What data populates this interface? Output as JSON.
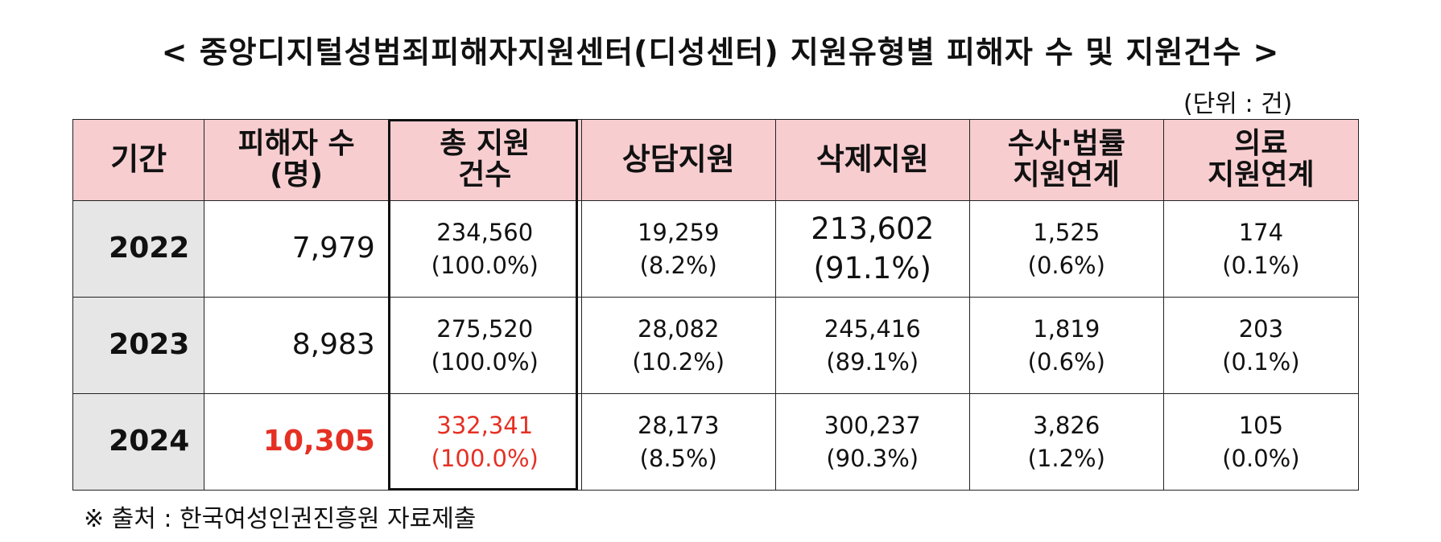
{
  "title": "< 중앙디지털성범죄피해자지원센터(디성센터) 지원유형별 피해자 수 및 지원건수 >",
  "unit": "(단위 : 건)",
  "table": {
    "headers": [
      {
        "line1": "기간",
        "line2": ""
      },
      {
        "line1": "피해자 수",
        "line2": "(명)"
      },
      {
        "line1": "총 지원",
        "line2": "건수"
      },
      {
        "line1": "상담지원",
        "line2": ""
      },
      {
        "line1": "삭제지원",
        "line2": ""
      },
      {
        "line1": "수사·법률",
        "line2": "지원연계"
      },
      {
        "line1": "의료",
        "line2": "지원연계"
      }
    ],
    "rows": [
      {
        "year": "2022",
        "victims": "7,979",
        "total": {
          "value": "234,560",
          "pct": "(100.0%)"
        },
        "counseling": {
          "value": "19,259",
          "pct": "(8.2%)"
        },
        "deletion": {
          "value": "213,602",
          "pct": "(91.1%)"
        },
        "legal": {
          "value": "1,525",
          "pct": "(0.6%)"
        },
        "medical": {
          "value": "174",
          "pct": "(0.1%)"
        }
      },
      {
        "year": "2023",
        "victims": "8,983",
        "total": {
          "value": "275,520",
          "pct": "(100.0%)"
        },
        "counseling": {
          "value": "28,082",
          "pct": "(10.2%)"
        },
        "deletion": {
          "value": "245,416",
          "pct": "(89.1%)"
        },
        "legal": {
          "value": "1,819",
          "pct": "(0.6%)"
        },
        "medical": {
          "value": "203",
          "pct": "(0.1%)"
        }
      },
      {
        "year": "2024",
        "victims": "10,305",
        "total": {
          "value": "332,341",
          "pct": "(100.0%)"
        },
        "counseling": {
          "value": "28,173",
          "pct": "(8.5%)"
        },
        "deletion": {
          "value": "300,237",
          "pct": "(90.3%)"
        },
        "legal": {
          "value": "3,826",
          "pct": "(1.2%)"
        },
        "medical": {
          "value": "105",
          "pct": "(0.0%)"
        }
      }
    ]
  },
  "footnote": "※ 출처 : 한국여성인권진흥원 자료제출",
  "colors": {
    "header_bg": "#f7cdd0",
    "year_bg": "#e6e6e6",
    "highlight_red": "#e53024"
  }
}
